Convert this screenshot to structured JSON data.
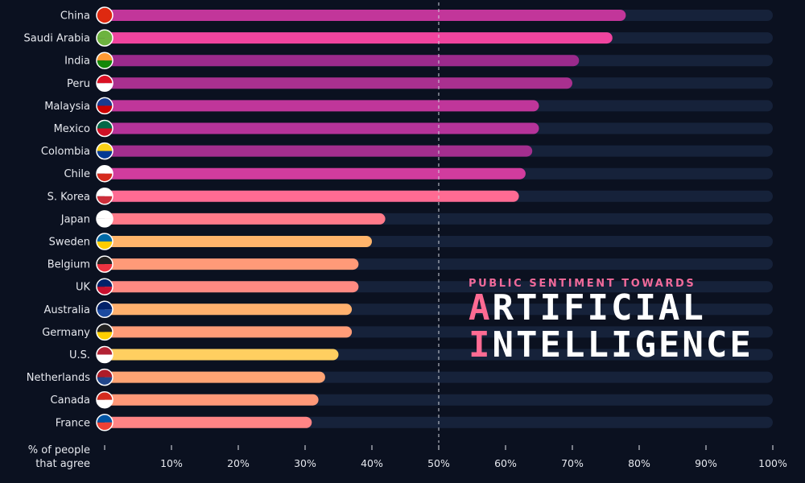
{
  "chart_data": {
    "type": "bar",
    "orientation": "horizontal",
    "title": "PUBLIC SENTIMENT TOWARDS ARTIFICIAL INTELLIGENCE",
    "title_parts": {
      "subtitle": "PUBLIC SENTIMENT TOWARDS",
      "line1_first": "A",
      "line1_rest": "RTIFICIAL",
      "line2_first": "I",
      "line2_rest": "NTELLIGENCE"
    },
    "xlabel": "% of people that agree",
    "xlabel_lines": [
      "% of people",
      "that agree"
    ],
    "xlim": [
      0,
      100
    ],
    "xticks": [
      0,
      10,
      20,
      30,
      40,
      50,
      60,
      70,
      80,
      90,
      100
    ],
    "xtick_labels": [
      "",
      "10%",
      "20%",
      "30%",
      "40%",
      "50%",
      "60%",
      "70%",
      "80%",
      "90%",
      "100%"
    ],
    "reference_line": 50,
    "grid": false,
    "categories": [
      "China",
      "Saudi Arabia",
      "India",
      "Peru",
      "Malaysia",
      "Mexico",
      "Colombia",
      "Chile",
      "S. Korea",
      "Japan",
      "Sweden",
      "Belgium",
      "UK",
      "Australia",
      "Germany",
      "U.S.",
      "Netherlands",
      "Canada",
      "France"
    ],
    "values": [
      78,
      76,
      71,
      70,
      65,
      65,
      64,
      63,
      62,
      42,
      40,
      38,
      38,
      37,
      37,
      35,
      33,
      32,
      31
    ],
    "bar_colors": [
      "#c2369a",
      "#f0449f",
      "#9b2a8c",
      "#a9308f",
      "#c0369a",
      "#b5339a",
      "#a32e8e",
      "#d13c9e",
      "#ff6b93",
      "#ff7a8a",
      "#ffb46b",
      "#ff9a78",
      "#ff8a82",
      "#ffb06e",
      "#ff9c78",
      "#ffcf60",
      "#ffa474",
      "#ff9878",
      "#ff8485"
    ],
    "flag_colors": [
      [
        "#de2910",
        "#de2910"
      ],
      [
        "#6db33f",
        "#6db33f"
      ],
      [
        "#ff9933",
        "#138808"
      ],
      [
        "#d91023",
        "#ffffff"
      ],
      [
        "#1a3a8f",
        "#cc0001"
      ],
      [
        "#006847",
        "#ce1126"
      ],
      [
        "#fcd116",
        "#003893"
      ],
      [
        "#ffffff",
        "#d52b1e"
      ],
      [
        "#ffffff",
        "#cd2e3a"
      ],
      [
        "#ffffff",
        "#ffffff"
      ],
      [
        "#006aa7",
        "#fecc00"
      ],
      [
        "#222222",
        "#ef3340"
      ],
      [
        "#012169",
        "#c8102e"
      ],
      [
        "#012169",
        "#1b4aa0"
      ],
      [
        "#222222",
        "#ffce00"
      ],
      [
        "#b22234",
        "#ffffff"
      ],
      [
        "#ae1c28",
        "#21468b"
      ],
      [
        "#d52b1e",
        "#ffffff"
      ],
      [
        "#0055a4",
        "#ef4135"
      ]
    ],
    "colors": {
      "background": "#0b1120",
      "track": "#16223a",
      "reference_line": "#d0d4dc"
    }
  }
}
